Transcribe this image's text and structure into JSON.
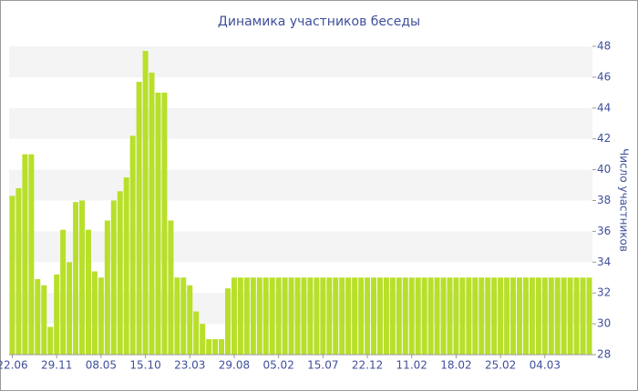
{
  "chart_data": {
    "type": "bar",
    "title": "Динамика участников беседы",
    "y_label": "Число участников",
    "color": "#b8df2a",
    "categories": [
      "22.06",
      null,
      null,
      null,
      null,
      null,
      null,
      "29.11",
      null,
      null,
      null,
      null,
      null,
      null,
      "08.05",
      null,
      null,
      null,
      null,
      null,
      null,
      "15.10",
      null,
      null,
      null,
      null,
      null,
      null,
      "23.03",
      null,
      null,
      null,
      null,
      null,
      null,
      "29.08",
      null,
      null,
      null,
      null,
      null,
      null,
      "05.02",
      null,
      null,
      null,
      null,
      null,
      null,
      "15.07",
      null,
      null,
      null,
      null,
      null,
      null,
      "22.12",
      null,
      null,
      null,
      null,
      null,
      null,
      "11.02",
      null,
      null,
      null,
      null,
      null,
      null,
      "18.02",
      null,
      null,
      null,
      null,
      null,
      null,
      "25.02",
      null,
      null,
      null,
      null,
      null,
      null,
      "04.03",
      null,
      null,
      null,
      null,
      null,
      null,
      null
    ],
    "values": [
      38.3,
      38.8,
      41,
      41,
      32.9,
      32.5,
      29.8,
      33.2,
      36.1,
      34,
      37.9,
      38,
      36.1,
      33.4,
      33,
      36.7,
      38,
      38.6,
      39.5,
      42.2,
      45.7,
      47.7,
      46.3,
      45,
      45,
      36.7,
      33,
      33,
      32.5,
      30.8,
      30,
      29,
      29,
      29,
      32.3,
      33,
      33,
      33,
      33,
      33,
      33,
      33,
      33,
      33,
      33,
      33,
      33,
      33,
      33,
      33,
      33,
      33,
      33,
      33,
      33,
      33,
      33,
      33,
      33,
      33,
      33,
      33,
      33,
      33,
      33,
      33,
      33,
      33,
      33,
      33,
      33,
      33,
      33,
      33,
      33,
      33,
      33,
      33,
      33,
      33,
      33,
      33,
      33,
      33,
      33,
      33,
      33,
      33,
      33,
      33,
      33,
      33
    ],
    "ylim": [
      28,
      48
    ],
    "yticks": [
      28,
      30,
      32,
      34,
      36,
      38,
      40,
      42,
      44,
      46,
      48
    ],
    "grid": true
  }
}
